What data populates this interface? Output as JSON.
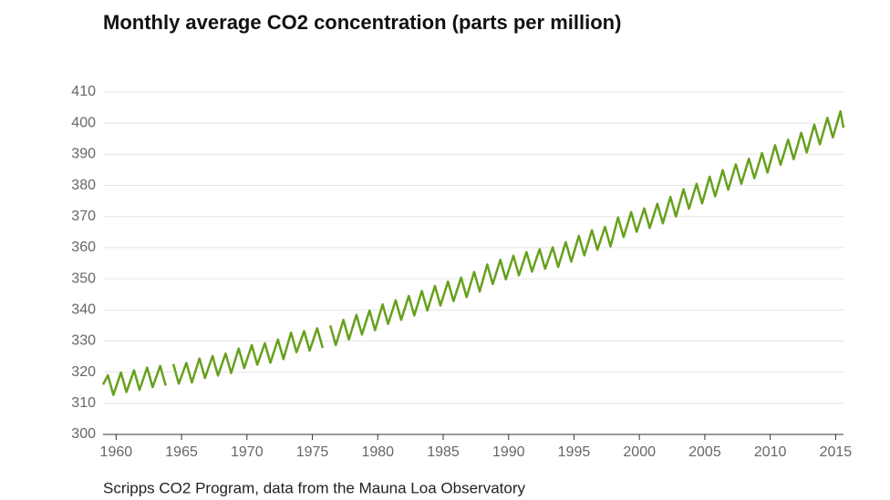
{
  "chart_data": {
    "type": "line",
    "title": "Monthly average CO2 concentration (parts per million)",
    "caption": "Scripps CO2 Program, data from the Mauna Loa Observatory",
    "x": [
      1959.0,
      1959.37,
      1959.79,
      1960.37,
      1960.79,
      1961.37,
      1961.79,
      1962.37,
      1962.79,
      1963.37,
      1963.79,
      1964.1,
      1964.37,
      1964.79,
      1965.37,
      1965.79,
      1966.37,
      1966.79,
      1967.37,
      1967.79,
      1968.37,
      1968.79,
      1969.37,
      1969.79,
      1970.37,
      1970.79,
      1971.37,
      1971.79,
      1972.37,
      1972.79,
      1973.37,
      1973.79,
      1974.37,
      1974.79,
      1975.37,
      1975.79,
      1975.95,
      1976.37,
      1976.79,
      1977.37,
      1977.79,
      1978.37,
      1978.79,
      1979.37,
      1979.79,
      1980.37,
      1980.79,
      1981.37,
      1981.79,
      1982.37,
      1982.79,
      1983.37,
      1983.79,
      1984.37,
      1984.79,
      1985.37,
      1985.79,
      1986.37,
      1986.79,
      1987.37,
      1987.79,
      1988.37,
      1988.79,
      1989.37,
      1989.79,
      1990.37,
      1990.79,
      1991.37,
      1991.79,
      1992.37,
      1992.79,
      1993.37,
      1993.79,
      1994.37,
      1994.79,
      1995.37,
      1995.79,
      1996.37,
      1996.79,
      1997.37,
      1997.79,
      1998.37,
      1998.79,
      1999.37,
      1999.79,
      2000.37,
      2000.79,
      2001.37,
      2001.79,
      2002.37,
      2002.79,
      2003.37,
      2003.79,
      2004.37,
      2004.79,
      2005.37,
      2005.79,
      2006.37,
      2006.79,
      2007.37,
      2007.79,
      2008.37,
      2008.79,
      2009.37,
      2009.79,
      2010.37,
      2010.79,
      2011.37,
      2011.79,
      2012.37,
      2012.79,
      2013.37,
      2013.79,
      2014.37,
      2014.79,
      2015.37,
      2015.6
    ],
    "series": [
      {
        "color": "#66a01c",
        "values": [
          316.0,
          319.0,
          312.7,
          319.9,
          313.6,
          320.6,
          314.3,
          321.5,
          315.2,
          322.0,
          315.7,
          null,
          322.6,
          316.3,
          323.0,
          316.7,
          324.4,
          318.1,
          325.2,
          318.9,
          326.0,
          319.7,
          327.6,
          321.3,
          328.7,
          322.4,
          329.3,
          323.0,
          330.5,
          324.2,
          332.7,
          326.4,
          333.2,
          326.9,
          334.1,
          327.8,
          null,
          335.0,
          328.7,
          336.8,
          330.5,
          338.4,
          332.1,
          339.8,
          333.5,
          341.8,
          335.5,
          343.1,
          336.8,
          344.5,
          338.2,
          346.1,
          339.8,
          347.7,
          341.4,
          349.1,
          342.8,
          350.4,
          344.1,
          352.2,
          345.9,
          354.6,
          348.3,
          356.1,
          349.8,
          357.4,
          351.1,
          358.6,
          352.3,
          359.5,
          353.2,
          360.1,
          353.8,
          361.8,
          355.5,
          363.8,
          357.5,
          365.6,
          359.3,
          366.7,
          360.4,
          369.7,
          363.4,
          371.4,
          365.1,
          372.6,
          366.3,
          374.1,
          367.8,
          376.3,
          370.0,
          378.8,
          372.5,
          380.5,
          374.2,
          382.8,
          376.5,
          384.9,
          378.6,
          386.8,
          380.5,
          388.6,
          382.3,
          390.4,
          384.1,
          392.9,
          386.6,
          394.7,
          388.4,
          396.9,
          390.6,
          399.5,
          393.2,
          401.7,
          395.4,
          403.8,
          398.5
        ]
      }
    ],
    "xlim": [
      1959,
      2015.6
    ],
    "xticks": [
      1960,
      1965,
      1970,
      1975,
      1980,
      1985,
      1990,
      1995,
      2000,
      2005,
      2010,
      2015
    ],
    "ylim": [
      300,
      410
    ],
    "yticks": [
      300,
      310,
      320,
      330,
      340,
      350,
      360,
      370,
      380,
      390,
      400,
      410
    ],
    "grid": true
  }
}
